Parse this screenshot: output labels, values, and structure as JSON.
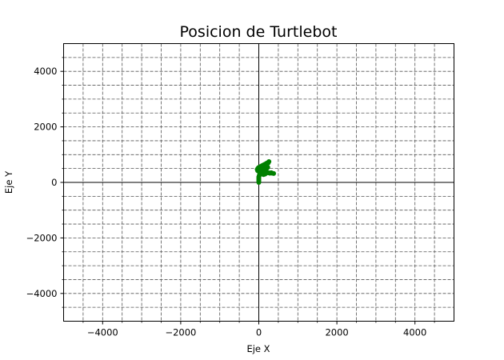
{
  "chart_data": {
    "type": "scatter",
    "title": "Posicion de Turtlebot",
    "xlabel": "Eje  X",
    "ylabel": "Eje  Y",
    "xlim": [
      -5000,
      5000
    ],
    "ylim": [
      -5000,
      5000
    ],
    "xticks": [
      -4000,
      -2000,
      0,
      2000,
      4000
    ],
    "yticks": [
      -4000,
      -2000,
      0,
      2000,
      4000
    ],
    "xtick_labels": [
      "−4000",
      "−2000",
      "0",
      "2000",
      "4000"
    ],
    "ytick_labels": [
      "−4000",
      "−2000",
      "0",
      "2000",
      "4000"
    ],
    "x_minor_gridlines": [
      -4500,
      -3500,
      -3000,
      -2500,
      -1500,
      -1000,
      -500,
      500,
      1000,
      1500,
      2500,
      3000,
      3500,
      4500
    ],
    "y_minor_gridlines": [
      -4500,
      -3500,
      -3000,
      -2500,
      -1500,
      -1000,
      -500,
      500,
      1000,
      1500,
      2500,
      3000,
      3500,
      4500
    ],
    "grid": true,
    "grid_style": "dashed",
    "zero_lines": true,
    "series_color": "#008000",
    "series": [
      {
        "points": [
          [
            0,
            0
          ],
          [
            0,
            40
          ],
          [
            0,
            80
          ],
          [
            0,
            120
          ],
          [
            0,
            160
          ],
          [
            0,
            200
          ],
          [
            10,
            240
          ],
          [
            20,
            280
          ],
          [
            30,
            300
          ],
          [
            60,
            310
          ],
          [
            100,
            320
          ],
          [
            140,
            330
          ],
          [
            180,
            340
          ],
          [
            220,
            345
          ],
          [
            260,
            345
          ],
          [
            300,
            340
          ],
          [
            340,
            330
          ],
          [
            380,
            320
          ],
          [
            40,
            320
          ],
          [
            20,
            360
          ],
          [
            0,
            400
          ],
          [
            -10,
            440
          ],
          [
            0,
            480
          ],
          [
            20,
            500
          ],
          [
            60,
            520
          ],
          [
            100,
            540
          ],
          [
            140,
            560
          ],
          [
            180,
            600
          ],
          [
            210,
            650
          ],
          [
            240,
            700
          ],
          [
            260,
            750
          ],
          [
            240,
            720
          ],
          [
            200,
            690
          ],
          [
            160,
            660
          ],
          [
            120,
            630
          ],
          [
            80,
            600
          ],
          [
            40,
            570
          ],
          [
            0,
            540
          ],
          [
            -20,
            510
          ],
          [
            60,
            380
          ],
          [
            100,
            400
          ],
          [
            140,
            420
          ],
          [
            180,
            440
          ],
          [
            150,
            480
          ],
          [
            110,
            500
          ],
          [
            70,
            480
          ],
          [
            30,
            460
          ],
          [
            200,
            500
          ],
          [
            230,
            540
          ],
          [
            120,
            280
          ],
          [
            160,
            300
          ],
          [
            -30,
            420
          ],
          [
            -40,
            470
          ],
          [
            280,
            330
          ],
          [
            320,
            350
          ]
        ]
      }
    ]
  }
}
